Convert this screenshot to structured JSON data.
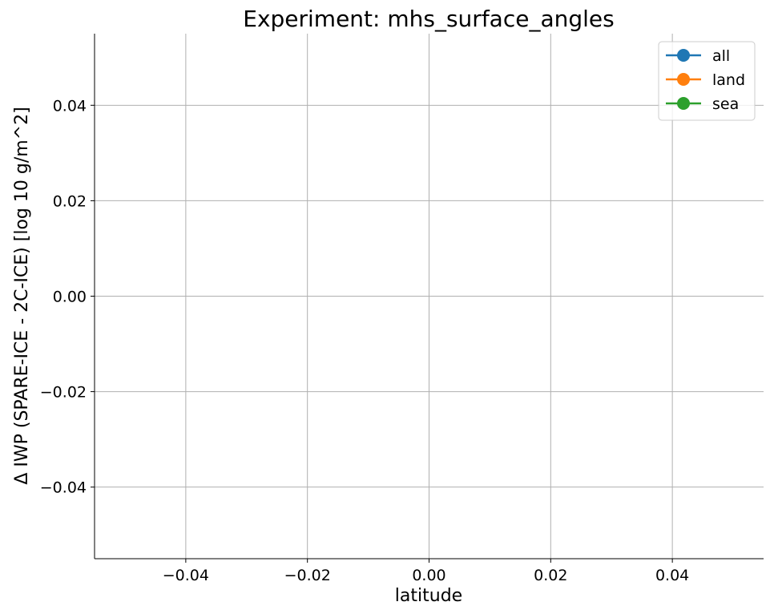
{
  "chart_data": {
    "type": "line",
    "title": "Experiment: mhs_surface_angles",
    "xlabel": "latitude",
    "ylabel": "Δ IWP (SPARE-ICE - 2C-ICE) [log 10 g/m^2]",
    "xlim": [
      -0.055,
      0.055
    ],
    "ylim": [
      -0.055,
      0.055
    ],
    "x_ticks": [
      -0.04,
      -0.02,
      0.0,
      0.02,
      0.04
    ],
    "y_ticks": [
      -0.04,
      -0.02,
      0.0,
      0.02,
      0.04
    ],
    "x_tick_labels": [
      "−0.04",
      "−0.02",
      "0.00",
      "0.02",
      "0.04"
    ],
    "y_tick_labels": [
      "−0.04",
      "−0.02",
      "0.00",
      "0.02",
      "0.04"
    ],
    "grid": true,
    "legend_position": "top-right",
    "series": [
      {
        "name": "all",
        "color": "#1f77b4",
        "marker": "circle",
        "x": [],
        "y": []
      },
      {
        "name": "land",
        "color": "#ff7f0e",
        "marker": "circle",
        "x": [],
        "y": []
      },
      {
        "name": "sea",
        "color": "#2ca02c",
        "marker": "circle",
        "x": [],
        "y": []
      }
    ]
  }
}
